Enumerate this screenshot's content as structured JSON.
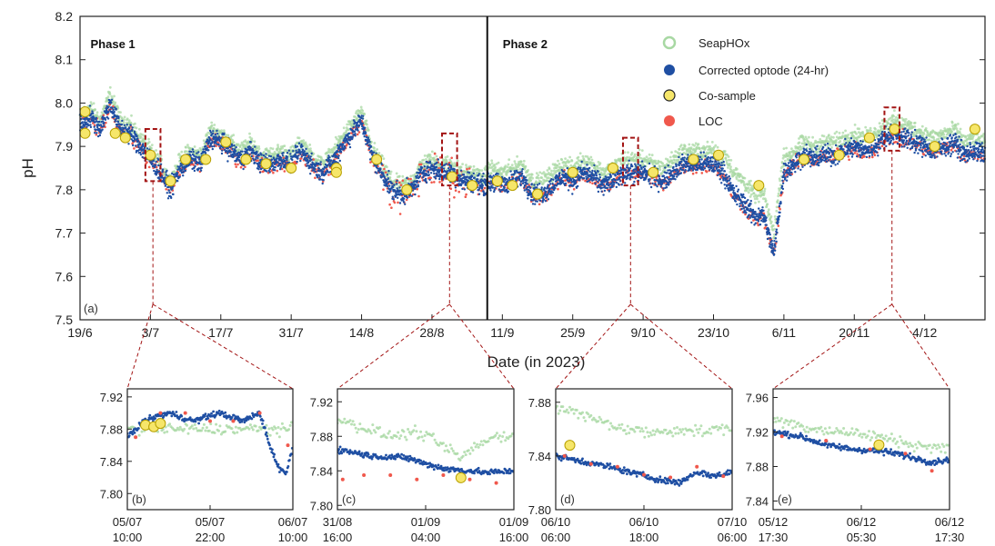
{
  "colors": {
    "seaphox": "#a8d8a3",
    "optode": "#1f4fa3",
    "cosample_fill": "#f6e66a",
    "cosample_edge": "#b8a000",
    "loc": "#f0584c",
    "zoom_box": "#a31414"
  },
  "chart_data": [
    {
      "type": "scatter",
      "panel_label": "(a)",
      "ylabel": "pH",
      "xlabel": "Date (in 2023)",
      "ylim": [
        7.5,
        8.2
      ],
      "yticks": [
        "7.5",
        "7.6",
        "7.7",
        "7.8",
        "7.9",
        "8.0",
        "8.1",
        "8.2"
      ],
      "xlim": [
        "2023-06-19",
        "2023-12-16"
      ],
      "xticks": [
        {
          "date": "2023-06-19",
          "label": "19/6"
        },
        {
          "date": "2023-07-03",
          "label": "3/7"
        },
        {
          "date": "2023-07-17",
          "label": "17/7"
        },
        {
          "date": "2023-07-31",
          "label": "31/7"
        },
        {
          "date": "2023-08-14",
          "label": "14/8"
        },
        {
          "date": "2023-08-28",
          "label": "28/8"
        },
        {
          "date": "2023-09-11",
          "label": "11/9"
        },
        {
          "date": "2023-09-25",
          "label": "25/9"
        },
        {
          "date": "2023-10-09",
          "label": "9/10"
        },
        {
          "date": "2023-10-23",
          "label": "23/10"
        },
        {
          "date": "2023-11-06",
          "label": "6/11"
        },
        {
          "date": "2023-11-20",
          "label": "20/11"
        },
        {
          "date": "2023-12-04",
          "label": "4/12"
        }
      ],
      "phase_divider": "2023-09-08",
      "phases": [
        {
          "label": "Phase 1",
          "date": "2023-06-20"
        },
        {
          "label": "Phase 2",
          "date": "2023-09-10"
        }
      ],
      "legend": {
        "position": "top-right",
        "entries": [
          {
            "name": "SeapHOx",
            "key": "seaphox"
          },
          {
            "name": "Corrected optode (24-hr)",
            "key": "optode"
          },
          {
            "name": "Co-sample",
            "key": "cosample"
          },
          {
            "name": "LOC",
            "key": "loc"
          }
        ]
      },
      "optode_profile": [
        [
          "2023-06-19",
          7.95
        ],
        [
          "2023-06-21",
          7.97
        ],
        [
          "2023-06-23",
          7.94
        ],
        [
          "2023-06-25",
          8.0
        ],
        [
          "2023-06-27",
          7.94
        ],
        [
          "2023-06-29",
          7.93
        ],
        [
          "2023-07-01",
          7.9
        ],
        [
          "2023-07-03",
          7.87
        ],
        [
          "2023-07-05",
          7.84
        ],
        [
          "2023-07-07",
          7.8
        ],
        [
          "2023-07-09",
          7.85
        ],
        [
          "2023-07-11",
          7.87
        ],
        [
          "2023-07-13",
          7.86
        ],
        [
          "2023-07-15",
          7.92
        ],
        [
          "2023-07-17",
          7.91
        ],
        [
          "2023-07-19",
          7.89
        ],
        [
          "2023-07-21",
          7.87
        ],
        [
          "2023-07-23",
          7.89
        ],
        [
          "2023-07-25",
          7.86
        ],
        [
          "2023-07-27",
          7.86
        ],
        [
          "2023-07-29",
          7.87
        ],
        [
          "2023-07-31",
          7.86
        ],
        [
          "2023-08-02",
          7.89
        ],
        [
          "2023-08-04",
          7.86
        ],
        [
          "2023-08-06",
          7.84
        ],
        [
          "2023-08-08",
          7.86
        ],
        [
          "2023-08-10",
          7.9
        ],
        [
          "2023-08-12",
          7.93
        ],
        [
          "2023-08-14",
          7.96
        ],
        [
          "2023-08-16",
          7.88
        ],
        [
          "2023-08-18",
          7.84
        ],
        [
          "2023-08-20",
          7.8
        ],
        [
          "2023-08-22",
          7.79
        ],
        [
          "2023-08-24",
          7.8
        ],
        [
          "2023-08-26",
          7.84
        ],
        [
          "2023-08-28",
          7.85
        ],
        [
          "2023-08-30",
          7.84
        ],
        [
          "2023-09-01",
          7.84
        ],
        [
          "2023-09-03",
          7.82
        ],
        [
          "2023-09-05",
          7.82
        ],
        [
          "2023-09-07",
          7.81
        ],
        [
          "2023-09-09",
          7.82
        ],
        [
          "2023-09-11",
          7.81
        ],
        [
          "2023-09-13",
          7.82
        ],
        [
          "2023-09-15",
          7.83
        ],
        [
          "2023-09-17",
          7.79
        ],
        [
          "2023-09-19",
          7.79
        ],
        [
          "2023-09-21",
          7.81
        ],
        [
          "2023-09-23",
          7.83
        ],
        [
          "2023-09-25",
          7.82
        ],
        [
          "2023-09-27",
          7.84
        ],
        [
          "2023-09-29",
          7.83
        ],
        [
          "2023-10-01",
          7.81
        ],
        [
          "2023-10-03",
          7.82
        ],
        [
          "2023-10-05",
          7.84
        ],
        [
          "2023-10-07",
          7.84
        ],
        [
          "2023-10-09",
          7.84
        ],
        [
          "2023-10-11",
          7.83
        ],
        [
          "2023-10-13",
          7.82
        ],
        [
          "2023-10-15",
          7.84
        ],
        [
          "2023-10-17",
          7.86
        ],
        [
          "2023-10-19",
          7.86
        ],
        [
          "2023-10-21",
          7.86
        ],
        [
          "2023-10-23",
          7.86
        ],
        [
          "2023-10-25",
          7.84
        ],
        [
          "2023-10-27",
          7.79
        ],
        [
          "2023-10-29",
          7.77
        ],
        [
          "2023-10-31",
          7.74
        ],
        [
          "2023-11-02",
          7.74
        ],
        [
          "2023-11-04",
          7.65
        ],
        [
          "2023-11-06",
          7.84
        ],
        [
          "2023-11-08",
          7.86
        ],
        [
          "2023-11-10",
          7.88
        ],
        [
          "2023-11-12",
          7.87
        ],
        [
          "2023-11-14",
          7.88
        ],
        [
          "2023-11-16",
          7.88
        ],
        [
          "2023-11-18",
          7.89
        ],
        [
          "2023-11-20",
          7.9
        ],
        [
          "2023-11-22",
          7.89
        ],
        [
          "2023-11-24",
          7.9
        ],
        [
          "2023-11-26",
          7.92
        ],
        [
          "2023-11-28",
          7.93
        ],
        [
          "2023-11-30",
          7.92
        ],
        [
          "2023-12-02",
          7.91
        ],
        [
          "2023-12-04",
          7.9
        ],
        [
          "2023-12-06",
          7.89
        ],
        [
          "2023-12-08",
          7.9
        ],
        [
          "2023-12-10",
          7.91
        ],
        [
          "2023-12-12",
          7.88
        ],
        [
          "2023-12-14",
          7.89
        ],
        [
          "2023-12-16",
          7.88
        ]
      ],
      "cosamples": [
        [
          "2023-06-20",
          7.98
        ],
        [
          "2023-06-20",
          7.93
        ],
        [
          "2023-06-26",
          7.93
        ],
        [
          "2023-06-28",
          7.92
        ],
        [
          "2023-07-03",
          7.88
        ],
        [
          "2023-07-07",
          7.82
        ],
        [
          "2023-07-10",
          7.87
        ],
        [
          "2023-07-14",
          7.87
        ],
        [
          "2023-07-18",
          7.91
        ],
        [
          "2023-07-22",
          7.87
        ],
        [
          "2023-07-26",
          7.86
        ],
        [
          "2023-07-31",
          7.85
        ],
        [
          "2023-08-09",
          7.85
        ],
        [
          "2023-08-09",
          7.84
        ],
        [
          "2023-08-17",
          7.87
        ],
        [
          "2023-08-23",
          7.8
        ],
        [
          "2023-09-01",
          7.83
        ],
        [
          "2023-09-05",
          7.81
        ],
        [
          "2023-09-10",
          7.82
        ],
        [
          "2023-09-13",
          7.81
        ],
        [
          "2023-09-18",
          7.79
        ],
        [
          "2023-09-25",
          7.84
        ],
        [
          "2023-10-03",
          7.85
        ],
        [
          "2023-10-11",
          7.84
        ],
        [
          "2023-10-19",
          7.87
        ],
        [
          "2023-10-24",
          7.88
        ],
        [
          "2023-11-01",
          7.81
        ],
        [
          "2023-11-10",
          7.87
        ],
        [
          "2023-11-17",
          7.88
        ],
        [
          "2023-11-23",
          7.92
        ],
        [
          "2023-11-28",
          7.94
        ],
        [
          "2023-12-06",
          7.9
        ],
        [
          "2023-12-14",
          7.94
        ]
      ],
      "zoom_boxes": [
        {
          "x": [
            "2023-07-02",
            "2023-07-05"
          ],
          "y": [
            7.82,
            7.94
          ],
          "target": 1
        },
        {
          "x": [
            "2023-08-30",
            "2023-09-02"
          ],
          "y": [
            7.81,
            7.93
          ],
          "target": 2
        },
        {
          "x": [
            "2023-10-05",
            "2023-10-08"
          ],
          "y": [
            7.81,
            7.92
          ],
          "target": 3
        },
        {
          "x": [
            "2023-11-26",
            "2023-11-29"
          ],
          "y": [
            7.89,
            7.99
          ],
          "target": 4
        }
      ]
    },
    {
      "type": "scatter",
      "panel_label": "(b)",
      "ylim": [
        7.78,
        7.93
      ],
      "yticks": [
        "7.80",
        "7.84",
        "7.88",
        "7.92"
      ],
      "xticks": [
        {
          "pos": 0,
          "date": "05/07",
          "time": "10:00"
        },
        {
          "pos": 0.5,
          "date": "05/07",
          "time": "22:00"
        },
        {
          "pos": 1,
          "date": "06/07",
          "time": "10:00"
        }
      ],
      "optode_profile": [
        [
          0,
          7.87
        ],
        [
          0.1,
          7.89
        ],
        [
          0.25,
          7.9
        ],
        [
          0.4,
          7.89
        ],
        [
          0.55,
          7.9
        ],
        [
          0.7,
          7.89
        ],
        [
          0.8,
          7.9
        ],
        [
          0.86,
          7.86
        ],
        [
          0.92,
          7.83
        ],
        [
          0.96,
          7.825
        ],
        [
          1,
          7.86
        ]
      ],
      "seaphox_profile": [
        [
          0,
          7.88
        ],
        [
          0.2,
          7.88
        ],
        [
          0.5,
          7.88
        ],
        [
          0.75,
          7.88
        ],
        [
          0.85,
          7.88
        ],
        [
          1,
          7.88
        ]
      ],
      "loc_points": [
        [
          0.05,
          7.87
        ],
        [
          0.2,
          7.9
        ],
        [
          0.35,
          7.9
        ],
        [
          0.5,
          7.89
        ],
        [
          0.64,
          7.89
        ],
        [
          0.8,
          7.9
        ],
        [
          0.97,
          7.86
        ]
      ],
      "cosamples": [
        [
          0.11,
          7.885
        ],
        [
          0.16,
          7.883
        ],
        [
          0.2,
          7.887
        ]
      ]
    },
    {
      "type": "scatter",
      "panel_label": "(c)",
      "ylim": [
        7.795,
        7.935
      ],
      "yticks": [
        "7.80",
        "7.84",
        "7.88",
        "7.92"
      ],
      "xticks": [
        {
          "pos": 0,
          "date": "31/08",
          "time": "16:00"
        },
        {
          "pos": 0.5,
          "date": "01/09",
          "time": "04:00"
        },
        {
          "pos": 1,
          "date": "01/09",
          "time": "16:00"
        }
      ],
      "optode_profile": [
        [
          0,
          7.865
        ],
        [
          0.2,
          7.857
        ],
        [
          0.4,
          7.855
        ],
        [
          0.5,
          7.848
        ],
        [
          0.62,
          7.842
        ],
        [
          0.75,
          7.84
        ],
        [
          0.85,
          7.838
        ],
        [
          1,
          7.84
        ]
      ],
      "seaphox_profile": [
        [
          0,
          7.9
        ],
        [
          0.15,
          7.89
        ],
        [
          0.3,
          7.88
        ],
        [
          0.45,
          7.885
        ],
        [
          0.55,
          7.875
        ],
        [
          0.7,
          7.855
        ],
        [
          0.8,
          7.87
        ],
        [
          0.9,
          7.88
        ],
        [
          1,
          7.88
        ]
      ],
      "loc_points": [
        [
          0.03,
          7.83
        ],
        [
          0.15,
          7.835
        ],
        [
          0.3,
          7.835
        ],
        [
          0.45,
          7.83
        ],
        [
          0.6,
          7.835
        ],
        [
          0.75,
          7.83
        ],
        [
          0.9,
          7.826
        ]
      ],
      "cosamples": [
        [
          0.7,
          7.832
        ]
      ]
    },
    {
      "type": "scatter",
      "panel_label": "(d)",
      "ylim": [
        7.8,
        7.89
      ],
      "yticks": [
        "7.80",
        "7.84",
        "7.88"
      ],
      "xticks": [
        {
          "pos": 0,
          "date": "06/10",
          "time": "06:00"
        },
        {
          "pos": 0.5,
          "date": "06/10",
          "time": "18:00"
        },
        {
          "pos": 1,
          "date": "07/10",
          "time": "06:00"
        }
      ],
      "optode_profile": [
        [
          0,
          7.84
        ],
        [
          0.15,
          7.836
        ],
        [
          0.3,
          7.832
        ],
        [
          0.45,
          7.827
        ],
        [
          0.6,
          7.822
        ],
        [
          0.7,
          7.82
        ],
        [
          0.8,
          7.828
        ],
        [
          0.9,
          7.825
        ],
        [
          1,
          7.828
        ]
      ],
      "seaphox_profile": [
        [
          0,
          7.877
        ],
        [
          0.2,
          7.868
        ],
        [
          0.4,
          7.86
        ],
        [
          0.55,
          7.857
        ],
        [
          0.7,
          7.86
        ],
        [
          0.85,
          7.858
        ],
        [
          1,
          7.862
        ]
      ],
      "loc_points": [
        [
          0.05,
          7.84
        ],
        [
          0.2,
          7.834
        ],
        [
          0.35,
          7.832
        ],
        [
          0.5,
          7.826
        ],
        [
          0.65,
          7.824
        ],
        [
          0.8,
          7.832
        ],
        [
          0.95,
          7.825
        ]
      ],
      "cosamples": [
        [
          0.08,
          7.848
        ]
      ]
    },
    {
      "type": "scatter",
      "panel_label": "(e)",
      "ylim": [
        7.83,
        7.97
      ],
      "yticks": [
        "7.84",
        "7.88",
        "7.92",
        "7.96"
      ],
      "xticks": [
        {
          "pos": 0,
          "date": "05/12",
          "time": "17:30"
        },
        {
          "pos": 0.5,
          "date": "06/12",
          "time": "05:30"
        },
        {
          "pos": 1,
          "date": "06/12",
          "time": "17:30"
        }
      ],
      "optode_profile": [
        [
          0,
          7.92
        ],
        [
          0.15,
          7.915
        ],
        [
          0.3,
          7.905
        ],
        [
          0.45,
          7.9
        ],
        [
          0.6,
          7.898
        ],
        [
          0.7,
          7.895
        ],
        [
          0.8,
          7.89
        ],
        [
          0.9,
          7.885
        ],
        [
          1,
          7.888
        ]
      ],
      "seaphox_profile": [
        [
          0,
          7.935
        ],
        [
          0.2,
          7.925
        ],
        [
          0.4,
          7.92
        ],
        [
          0.6,
          7.915
        ],
        [
          0.8,
          7.905
        ],
        [
          1,
          7.9
        ]
      ],
      "loc_points": [
        [
          0.05,
          7.915
        ],
        [
          0.3,
          7.91
        ],
        [
          0.55,
          7.9
        ],
        [
          0.75,
          7.895
        ],
        [
          0.9,
          7.875
        ]
      ],
      "cosamples": [
        [
          0.6,
          7.905
        ]
      ]
    }
  ]
}
